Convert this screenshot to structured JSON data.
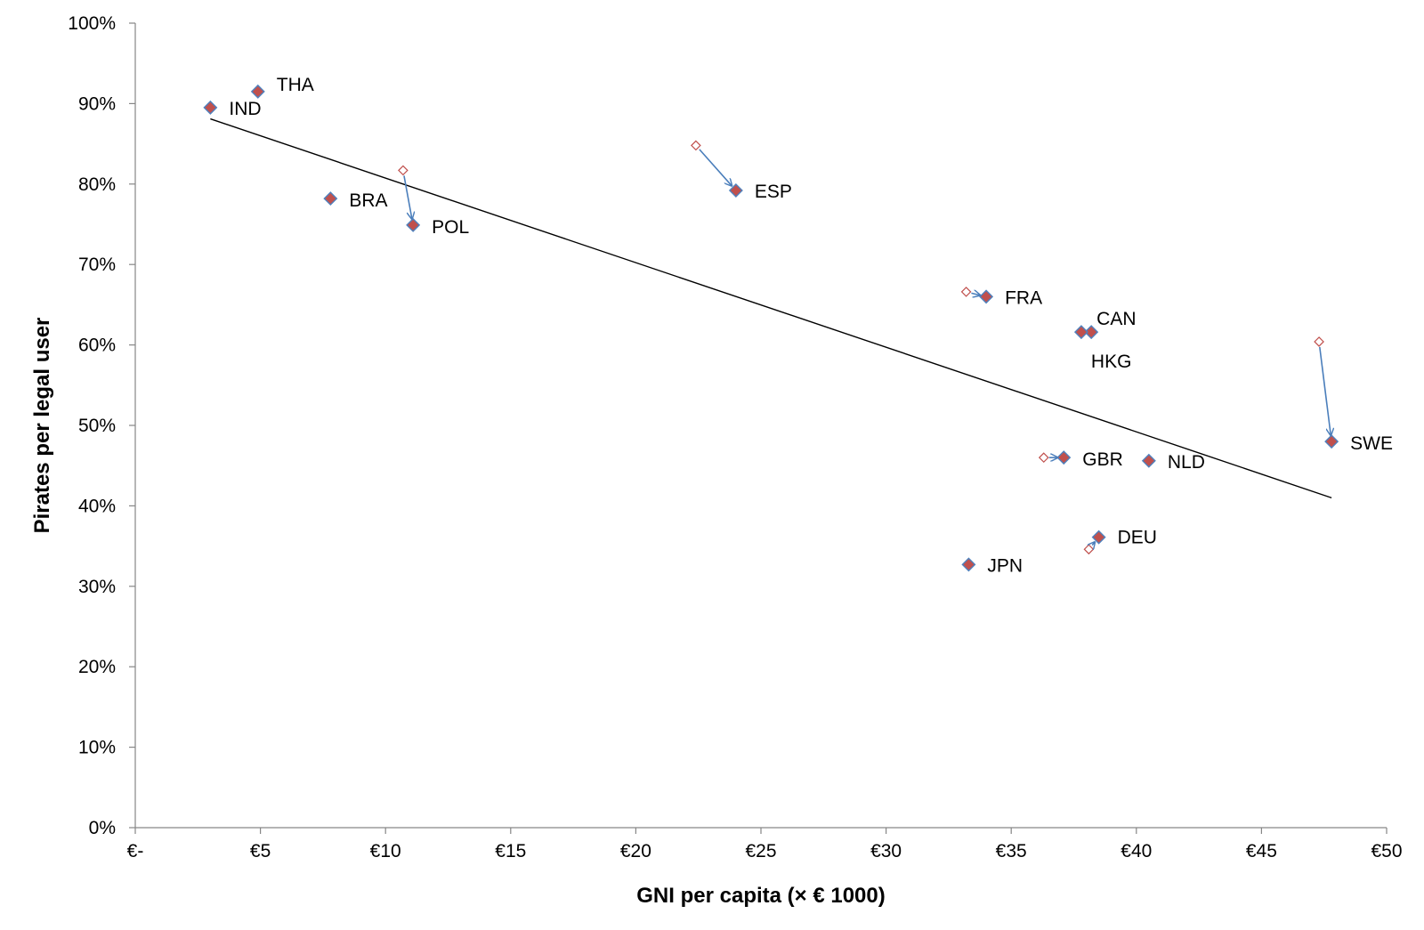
{
  "chart_data": {
    "type": "scatter",
    "title": "",
    "xlabel": "GNI per capita (× € 1000)",
    "ylabel": "Pirates per legal user",
    "xlim": [
      0,
      50
    ],
    "ylim": [
      0,
      1
    ],
    "x_ticks": [
      {
        "value": 0,
        "label": "€-"
      },
      {
        "value": 5,
        "label": "€5"
      },
      {
        "value": 10,
        "label": "€10"
      },
      {
        "value": 15,
        "label": "€15"
      },
      {
        "value": 20,
        "label": "€20"
      },
      {
        "value": 25,
        "label": "€25"
      },
      {
        "value": 30,
        "label": "€30"
      },
      {
        "value": 35,
        "label": "€35"
      },
      {
        "value": 40,
        "label": "€40"
      },
      {
        "value": 45,
        "label": "€45"
      },
      {
        "value": 50,
        "label": "€50"
      }
    ],
    "y_ticks": [
      {
        "value": 0,
        "label": "0%"
      },
      {
        "value": 0.1,
        "label": "10%"
      },
      {
        "value": 0.2,
        "label": "20%"
      },
      {
        "value": 0.3,
        "label": "30%"
      },
      {
        "value": 0.4,
        "label": "40%"
      },
      {
        "value": 0.5,
        "label": "50%"
      },
      {
        "value": 0.6,
        "label": "60%"
      },
      {
        "value": 0.7,
        "label": "70%"
      },
      {
        "value": 0.8,
        "label": "80%"
      },
      {
        "value": 0.9,
        "label": "90%"
      },
      {
        "value": 1.0,
        "label": "100%"
      }
    ],
    "grid": false,
    "legend": "none",
    "points": [
      {
        "label": "IND",
        "x": 3.0,
        "y": 0.895
      },
      {
        "label": "THA",
        "x": 4.9,
        "y": 0.915
      },
      {
        "label": "BRA",
        "x": 7.8,
        "y": 0.782
      },
      {
        "label": "POL",
        "x": 11.1,
        "y": 0.749,
        "prev": {
          "x": 10.7,
          "y": 0.817
        }
      },
      {
        "label": "ESP",
        "x": 24.0,
        "y": 0.792,
        "prev": {
          "x": 22.4,
          "y": 0.848
        }
      },
      {
        "label": "FRA",
        "x": 34.0,
        "y": 0.66,
        "prev": {
          "x": 33.2,
          "y": 0.666
        }
      },
      {
        "label": "CAN",
        "x": 38.2,
        "y": 0.616
      },
      {
        "label": "HKG",
        "x": 37.8,
        "y": 0.616
      },
      {
        "label": "SWE",
        "x": 47.8,
        "y": 0.48,
        "prev": {
          "x": 47.3,
          "y": 0.604
        }
      },
      {
        "label": "GBR",
        "x": 37.1,
        "y": 0.46,
        "prev": {
          "x": 36.3,
          "y": 0.46
        }
      },
      {
        "label": "NLD",
        "x": 40.5,
        "y": 0.456
      },
      {
        "label": "DEU",
        "x": 38.5,
        "y": 0.361,
        "prev": {
          "x": 38.1,
          "y": 0.346
        }
      },
      {
        "label": "JPN",
        "x": 33.3,
        "y": 0.327
      }
    ],
    "trendline": {
      "x": [
        3.0,
        47.8
      ],
      "y": [
        0.881,
        0.41
      ]
    },
    "colors": {
      "marker_fill": "#c0504d",
      "marker_stroke": "#4f81bd",
      "prev_marker_stroke": "#c0504d",
      "arrow": "#4a7ebb",
      "trendline": "#000000"
    }
  }
}
